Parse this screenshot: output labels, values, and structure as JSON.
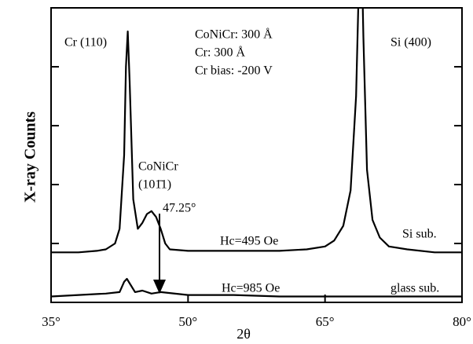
{
  "chart_data": {
    "type": "line",
    "x_label": "2θ",
    "y_label": "X-ray Counts",
    "xlim": [
      35,
      80
    ],
    "xticks": [
      {
        "value": 35,
        "label": "35°"
      },
      {
        "value": 50,
        "label": "50°"
      },
      {
        "value": 65,
        "label": "65°"
      },
      {
        "value": 80,
        "label": "80°"
      }
    ],
    "ylim": [
      0,
      100
    ],
    "yticks": [
      20,
      40,
      60,
      80
    ],
    "series": [
      {
        "name": "Si sub.",
        "color": "#000000",
        "x": [
          35,
          38,
          40,
          41,
          42,
          42.5,
          43,
          43.2,
          43.4,
          43.6,
          44,
          44.5,
          45,
          45.5,
          46,
          46.5,
          47,
          47.5,
          48,
          50,
          55,
          60,
          63,
          65,
          66,
          67,
          67.8,
          68.4,
          68.8,
          69.0,
          69.2,
          69.6,
          70.2,
          71,
          72,
          74,
          77,
          80
        ],
        "values": [
          17,
          17,
          17.5,
          18,
          20,
          25,
          50,
          80,
          92,
          75,
          35,
          25,
          27,
          30,
          31,
          29,
          25,
          20,
          18,
          17.5,
          17.5,
          17.5,
          18,
          19,
          21,
          26,
          38,
          70,
          120,
          120,
          90,
          45,
          28,
          22,
          19,
          18,
          17,
          17
        ]
      },
      {
        "name": "glass sub.",
        "color": "#000000",
        "x": [
          35,
          38,
          41,
          42.5,
          43,
          43.3,
          43.7,
          44.2,
          45,
          46,
          47,
          50,
          55,
          60,
          65,
          70,
          75,
          80
        ],
        "values": [
          2,
          2.5,
          3,
          3.5,
          7,
          8,
          6,
          3.5,
          4,
          3,
          3.5,
          2.5,
          2.5,
          2,
          2,
          2,
          2,
          2
        ]
      }
    ],
    "annotations": [
      "Cr (110)",
      "CoNiCr: 300 Å",
      "Cr: 300 Å",
      "Cr bias: -200 V",
      "Si (400)",
      "CoNiCr",
      "(101̄1)",
      "47.25°",
      "Hc=495 Oe",
      "Hc=985 Oe"
    ]
  }
}
